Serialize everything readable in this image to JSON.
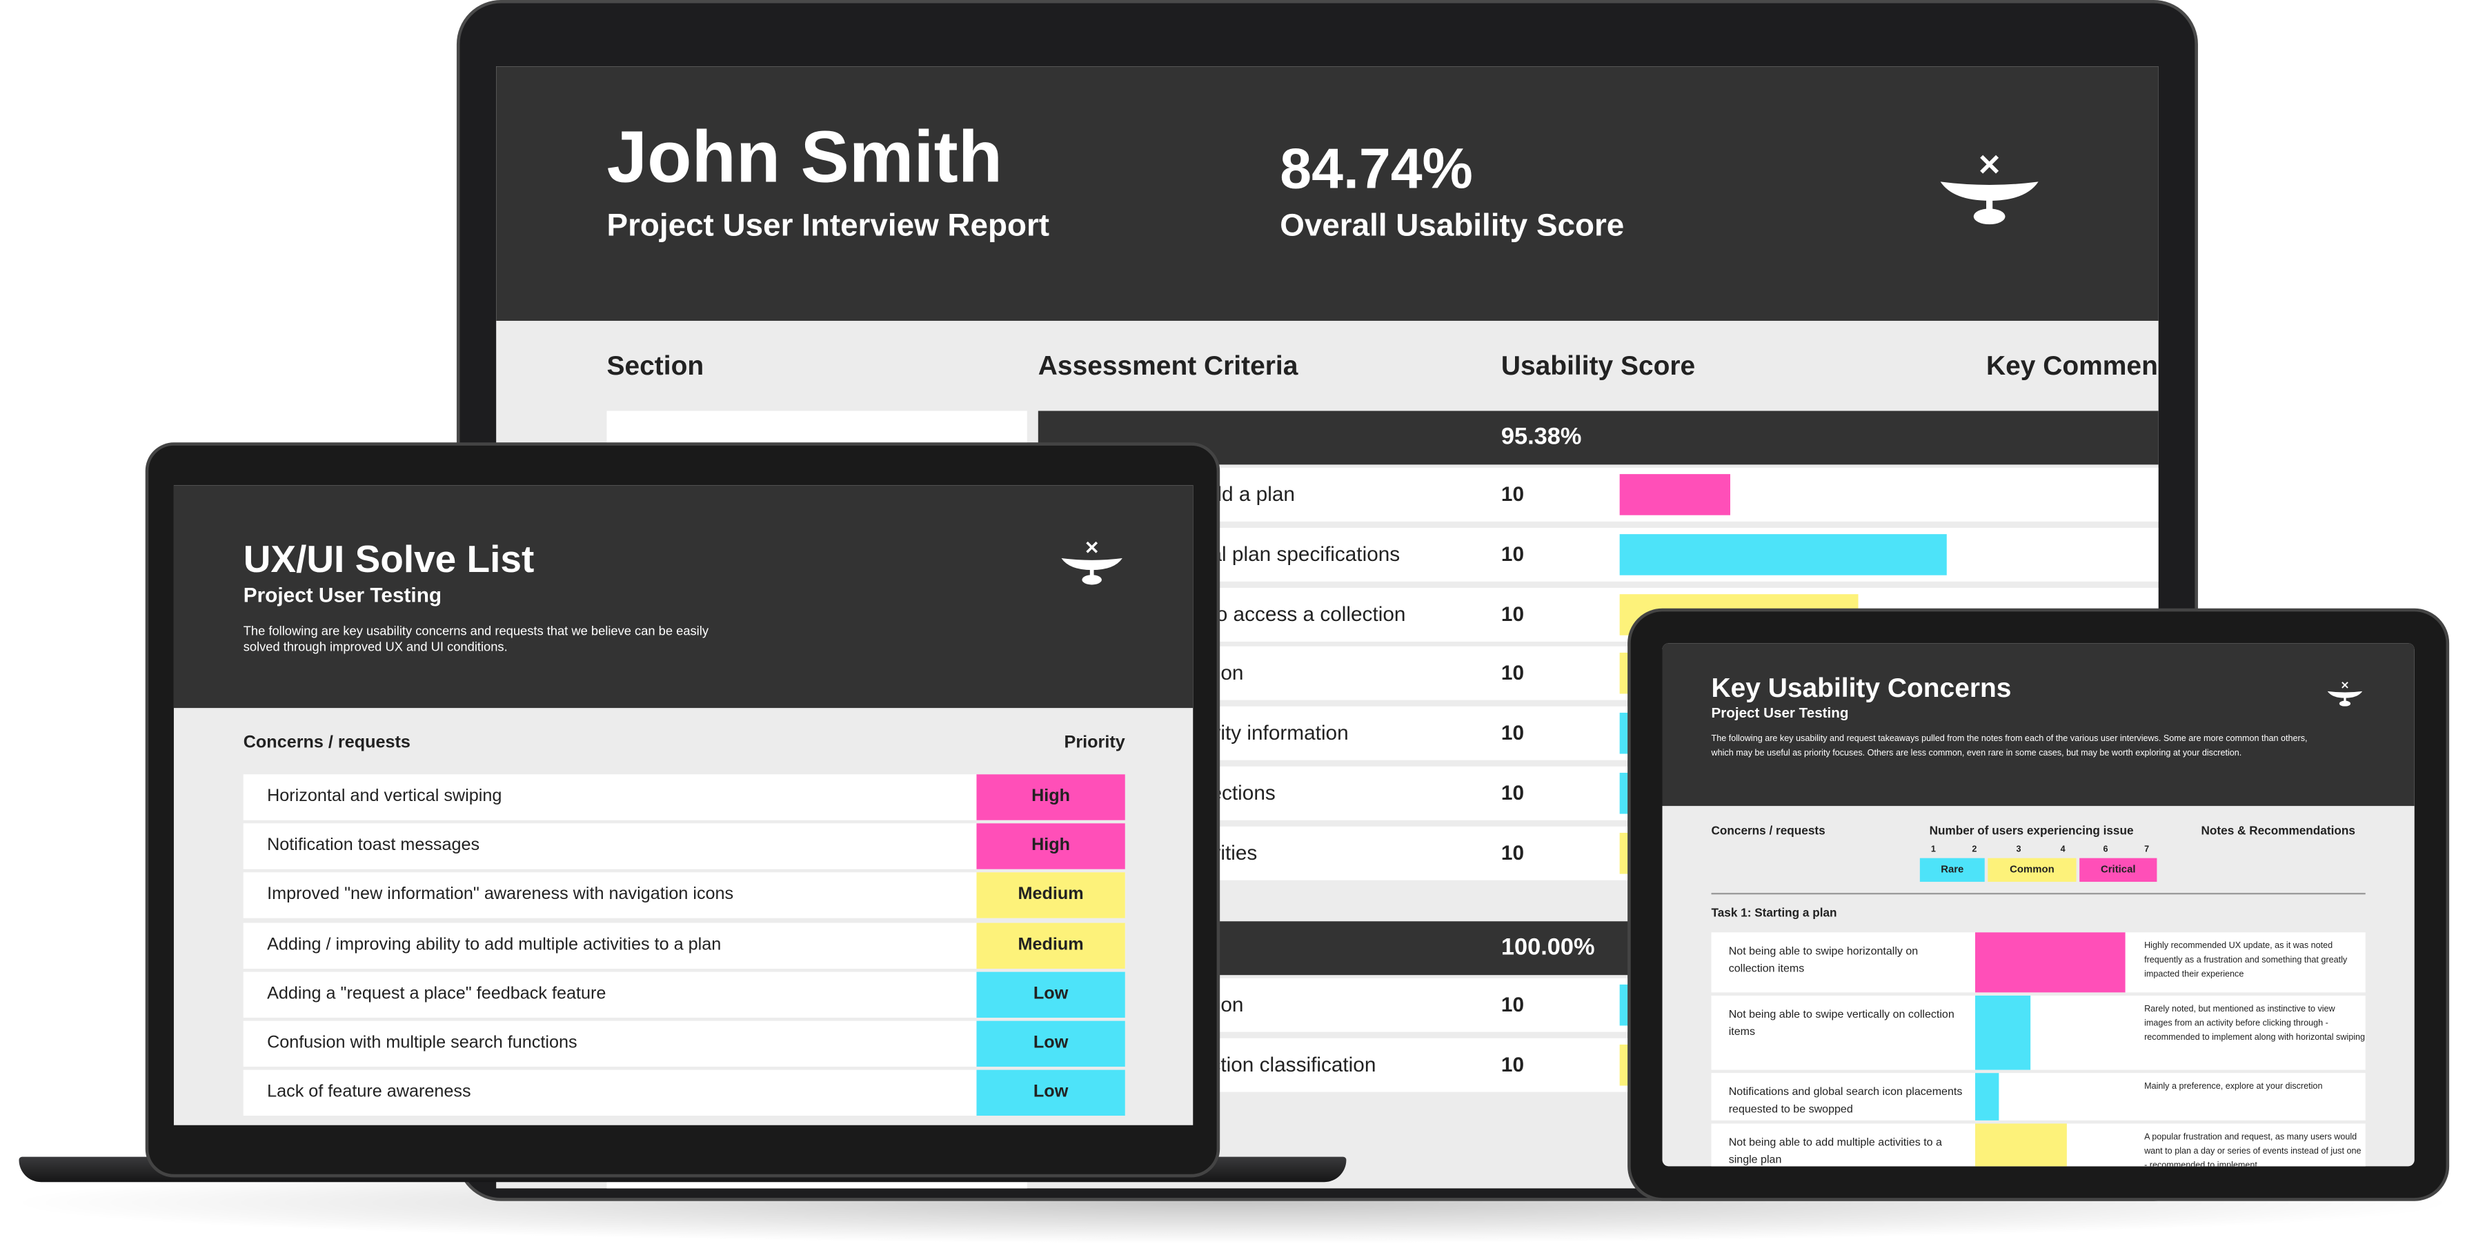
{
  "monitor": {
    "name": "John Smith",
    "subtitle": "Project User Interview Report",
    "score": "84.74%",
    "score_label": "Overall Usability Score",
    "columns": [
      "Section",
      "Assessment Criteria",
      "Usability Score",
      "Key Commen"
    ],
    "groups": [
      {
        "score": "95.38%",
        "rows": [
          {
            "criteria": "dd a plan",
            "score": 10
          },
          {
            "criteria": "al plan specifications",
            "score": 10
          },
          {
            "criteria": "to access a collection",
            "score": 10
          },
          {
            "criteria": "tion",
            "score": 10
          },
          {
            "criteria": "vity information",
            "score": 10
          },
          {
            "criteria": "ections",
            "score": 10
          },
          {
            "criteria": "vities",
            "score": 10
          }
        ]
      },
      {
        "score": "100.00%",
        "rows": [
          {
            "criteria": "tion",
            "score": 10
          },
          {
            "criteria": "ction classification",
            "score": 10
          }
        ]
      }
    ]
  },
  "laptop": {
    "title": "UX/UI Solve List",
    "subtitle": "Project User Testing",
    "description": "The following are key usability concerns and requests that we believe can be easily solved through improved UX and UI conditions.",
    "columns": [
      "Concerns / requests",
      "Priority"
    ],
    "rows": [
      {
        "concern": "Horizontal and vertical swiping",
        "priority": "High"
      },
      {
        "concern": "Notification toast messages",
        "priority": "High"
      },
      {
        "concern": "Improved \"new information\" awareness with navigation icons",
        "priority": "Medium"
      },
      {
        "concern": "Adding / improving ability to add multiple activities to a plan",
        "priority": "Medium"
      },
      {
        "concern": "Adding a \"request a place\" feedback feature",
        "priority": "Low"
      },
      {
        "concern": "Confusion with multiple search functions",
        "priority": "Low"
      },
      {
        "concern": "Lack of feature awareness",
        "priority": "Low"
      }
    ]
  },
  "tablet": {
    "title": "Key Usability Concerns",
    "subtitle": "Project User Testing",
    "description": "The following are key usability and request takeaways pulled from the notes from each of the various user interviews. Some are more common than others, which may be useful as priority focuses. Others are less common, even rare in some cases, but may be worth exploring at your discretion.",
    "columns": [
      "Concerns / requests",
      "Number of users experiencing issue",
      "Notes & Recommendations"
    ],
    "legend_numbers": [
      "1",
      "2",
      "3",
      "4",
      "6",
      "7"
    ],
    "legend": [
      "Rare",
      "Common",
      "Critical"
    ],
    "task": "Task 1: Starting a plan",
    "rows": [
      {
        "concern": "Not being able to swipe horizontally on collection items",
        "notes": "Highly recommended UX update, as it was noted frequently as a frustration and something that greatly impacted their experience"
      },
      {
        "concern": "Not being able to swipe vertically on collection items",
        "notes": "Rarely noted, but mentioned as instinctive to view images from an activity before clicking through - recommended to implement along with horizontal swiping"
      },
      {
        "concern": "Notifications and global search icon placements requested to be swopped",
        "notes": "Mainly a preference, explore at your discretion"
      },
      {
        "concern": "Not being able to add multiple activities to a single plan",
        "notes": "A popular frustration and request, as many users would want to plan a day or series of events instead of just one - recommended to implement"
      }
    ]
  }
}
